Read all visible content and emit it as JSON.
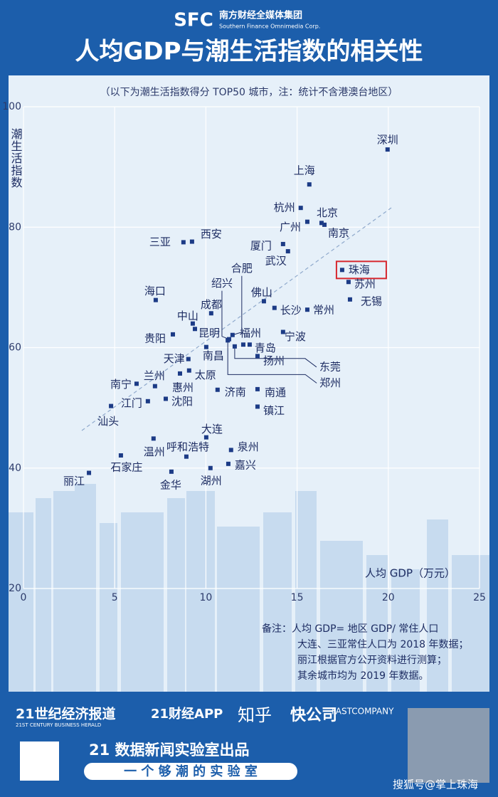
{
  "header": {
    "logo": "SFC",
    "org": "南方财经全媒体集团",
    "org_en": "Southern Finance Omnimedia Corp."
  },
  "chart_data": {
    "type": "scatter",
    "title": "人均GDP与潮生活指数的相关性",
    "subtitle": "（以下为潮生活指数得分 TOP50 城市，注：统计不含港澳台地区）",
    "y_label": "潮生活指数",
    "x_label": "人均 GDP（万元）",
    "labels": [
      "深圳",
      "上海",
      "杭州",
      "北京",
      "南京",
      "广州",
      "三亚",
      "西安",
      "厦门",
      "武汉",
      "珠海",
      "苏州",
      "无锡",
      "海口",
      "佛山",
      "长沙",
      "常州",
      "合肥",
      "绍兴",
      "东莞",
      "郑州",
      "成都",
      "中山",
      "昆明",
      "贵阳",
      "福州",
      "青岛",
      "南昌",
      "扬州",
      "宁波",
      "天津",
      "兰州",
      "太原",
      "惠州",
      "南宁",
      "济南",
      "南通",
      "江门",
      "沈阳",
      "镇江",
      "汕头",
      "大连",
      "温州",
      "呼和浩特",
      "泉州",
      "石家庄",
      "嘉兴",
      "湖州",
      "金华",
      "丽江"
    ],
    "x": [
      19.96,
      15.67,
      15.2,
      16.34,
      16.5,
      15.56,
      8.77,
      9.24,
      14.23,
      14.5,
      17.47,
      17.82,
      17.9,
      7.25,
      13.18,
      13.76,
      15.56,
      11.46,
      11.27,
      11.58,
      11.2,
      10.29,
      9.28,
      9.4,
      8.19,
      12.05,
      12.4,
      10.02,
      12.83,
      14.23,
      9.04,
      7.21,
      9.08,
      8.58,
      6.2,
      10.64,
      12.83,
      6.82,
      7.8,
      12.83,
      4.8,
      10.02,
      7.13,
      8.93,
      11.38,
      5.34,
      11.23,
      10.25,
      8.11,
      3.59
    ],
    "values": [
      92.9,
      87.1,
      83.2,
      80.7,
      80.4,
      80.9,
      77.5,
      77.6,
      77.2,
      76.0,
      72.9,
      70.9,
      68.0,
      67.9,
      67.7,
      66.6,
      66.3,
      62.1,
      61.4,
      60.2,
      61.2,
      65.7,
      64.0,
      63.1,
      62.2,
      60.5,
      60.5,
      60.1,
      58.6,
      62.6,
      58.1,
      53.6,
      56.2,
      55.7,
      54.0,
      53.0,
      53.1,
      51.1,
      51.5,
      50.2,
      50.3,
      45.1,
      44.9,
      41.9,
      43.0,
      42.1,
      40.7,
      40.0,
      39.4,
      39.2
    ],
    "color": "#1c3b86",
    "highlight_color": "#d7282f",
    "xlim": [
      0,
      25
    ],
    "xticks": [
      0,
      5,
      10,
      15,
      20,
      25
    ],
    "ylim": [
      20,
      100
    ],
    "yticks": [
      20,
      40,
      60,
      80,
      100
    ],
    "grid": true
  },
  "notes": {
    "lines": [
      "备注：人均 GDP= 地区 GDP/ 常住人口",
      "大连、三亚常住人口为 2018 年数据；",
      "丽江根据官方公开资料进行测算；",
      "其余城市均为 2019 年数据。"
    ]
  },
  "footer": {
    "brand1": "21世纪经济报道",
    "brand1_en": "21ST CENTURY BUSINESS HERALD",
    "brand2": "21财经APP",
    "brand3": "知乎",
    "brand4": "快公司",
    "brand4_en": "FASTCOMPANY",
    "lab": "21 数据新闻实验室出品",
    "slogan": "一 个 够 潮 的 实 验 室",
    "watermark": "搜狐号@掌上珠海"
  }
}
